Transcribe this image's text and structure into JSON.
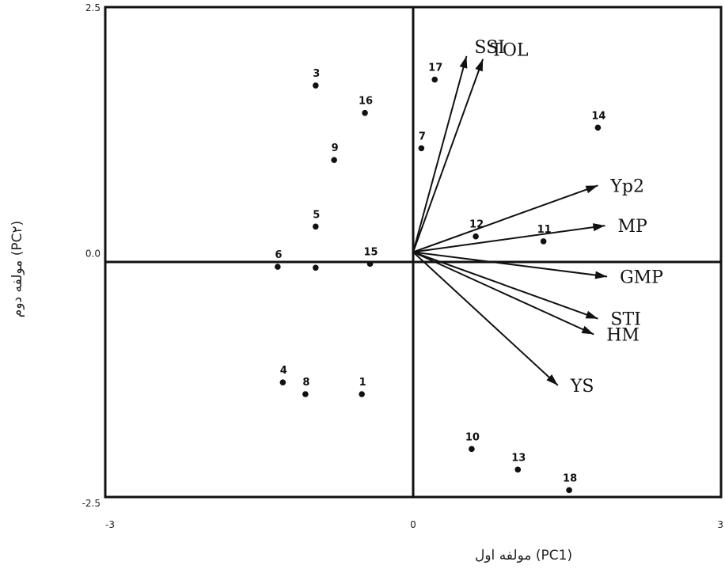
{
  "chart_data": {
    "type": "scatter",
    "subtype": "pca-biplot",
    "xlabel": "مولفه اول (PC1)",
    "ylabel": "مولفه دوم (PC۲)",
    "xlim": [
      -3,
      3
    ],
    "ylim": [
      -2.5,
      2.5
    ],
    "x_ticks": [
      "-3",
      "0",
      "3"
    ],
    "y_ticks": [
      "2.5",
      "0.0",
      "-2.5"
    ],
    "grid": false,
    "points": [
      {
        "label": "1",
        "x": -0.5,
        "y": -1.45
      },
      {
        "label": "3",
        "x": -0.95,
        "y": 1.7
      },
      {
        "label": "4",
        "x": -1.27,
        "y": -1.33
      },
      {
        "label": "5",
        "x": -0.95,
        "y": 0.26
      },
      {
        "label": "6",
        "x": -1.32,
        "y": -0.15
      },
      {
        "label": "7",
        "x": 0.08,
        "y": 1.06
      },
      {
        "label": "8",
        "x": -1.05,
        "y": -1.45
      },
      {
        "label": "9",
        "x": -0.77,
        "y": 0.94
      },
      {
        "label": "10",
        "x": 0.57,
        "y": -2.01
      },
      {
        "label": "11",
        "x": 1.27,
        "y": 0.11
      },
      {
        "label": "12",
        "x": 0.61,
        "y": 0.16
      },
      {
        "label": "13",
        "x": 1.02,
        "y": -2.22
      },
      {
        "label": "14",
        "x": 1.8,
        "y": 1.27
      },
      {
        "label": "15",
        "x": -0.42,
        "y": -0.12
      },
      {
        "label": "16",
        "x": -0.47,
        "y": 1.42
      },
      {
        "label": "17",
        "x": 0.21,
        "y": 1.76
      },
      {
        "label": "18",
        "x": 1.52,
        "y": -2.43
      },
      {
        "label": "",
        "x": -0.95,
        "y": -0.16
      }
    ],
    "vectors": [
      {
        "label": "SSI",
        "x": 0.52,
        "y": 2.0
      },
      {
        "label": "TOL",
        "x": 0.68,
        "y": 1.97
      },
      {
        "label": "Yp2",
        "x": 1.8,
        "y": 0.68
      },
      {
        "label": "MP",
        "x": 1.87,
        "y": 0.27
      },
      {
        "label": "GMP",
        "x": 1.89,
        "y": -0.25
      },
      {
        "label": "STI",
        "x": 1.8,
        "y": -0.68
      },
      {
        "label": "HM",
        "x": 1.76,
        "y": -0.84
      },
      {
        "label": "YS",
        "x": 1.41,
        "y": -1.36
      }
    ]
  }
}
